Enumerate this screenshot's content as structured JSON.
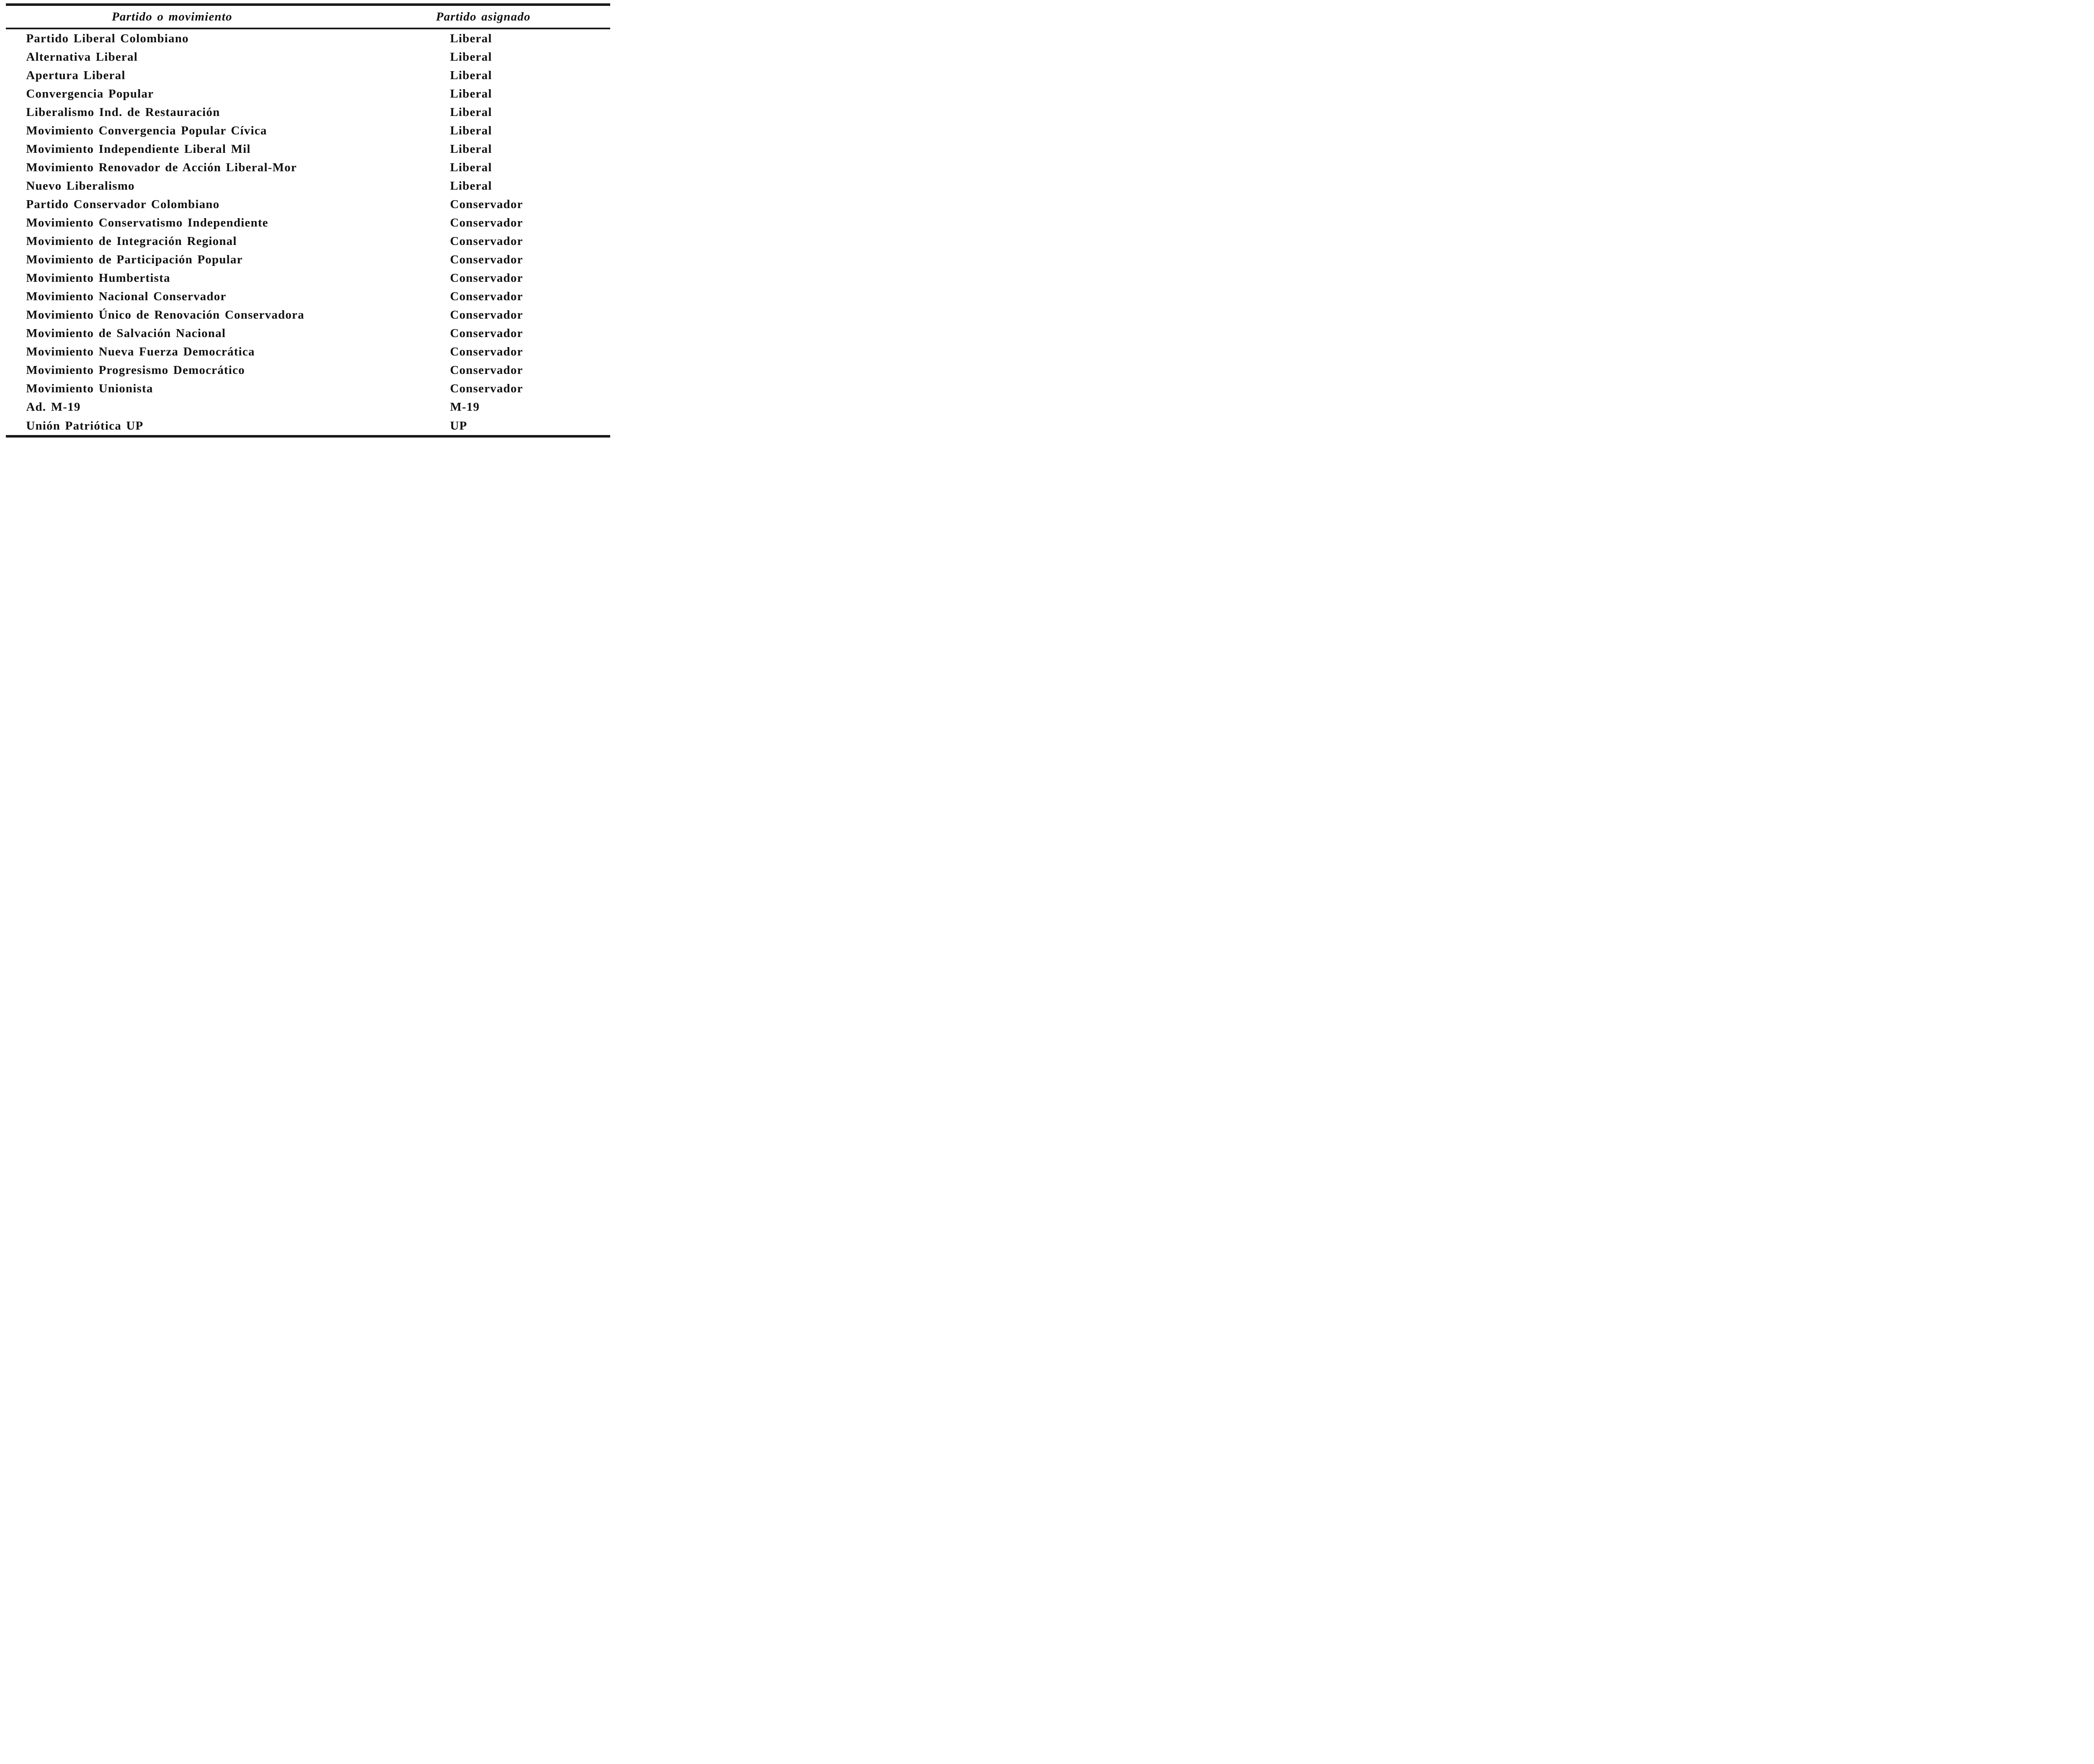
{
  "page": {
    "background_color": "#ffffff",
    "ink_color": "#101010",
    "rule_color": "#1a1a1a"
  },
  "table": {
    "columns": [
      {
        "label": "Partido o movimiento"
      },
      {
        "label": "Partido asignado"
      }
    ],
    "rows": [
      {
        "movimiento": "Partido Liberal Colombiano",
        "asignado": "Liberal"
      },
      {
        "movimiento": "Alternativa Liberal",
        "asignado": "Liberal"
      },
      {
        "movimiento": "Apertura Liberal",
        "asignado": "Liberal"
      },
      {
        "movimiento": "Convergencia Popular",
        "asignado": "Liberal"
      },
      {
        "movimiento": "Liberalismo Ind. de Restauración",
        "asignado": "Liberal"
      },
      {
        "movimiento": "Movimiento Convergencia Popular Cívica",
        "asignado": "Liberal"
      },
      {
        "movimiento": "Movimiento Independiente Liberal Mil",
        "asignado": "Liberal"
      },
      {
        "movimiento": "Movimiento Renovador de Acción Liberal-Mor",
        "asignado": "Liberal"
      },
      {
        "movimiento": "Nuevo Liberalismo",
        "asignado": "Liberal"
      },
      {
        "movimiento": "Partido Conservador Colombiano",
        "asignado": "Conservador"
      },
      {
        "movimiento": "Movimiento Conservatismo Independiente",
        "asignado": "Conservador"
      },
      {
        "movimiento": "Movimiento de Integración Regional",
        "asignado": "Conservador"
      },
      {
        "movimiento": "Movimiento de Participación Popular",
        "asignado": "Conservador"
      },
      {
        "movimiento": "Movimiento Humbertista",
        "asignado": "Conservador"
      },
      {
        "movimiento": "Movimiento Nacional Conservador",
        "asignado": "Conservador"
      },
      {
        "movimiento": "Movimiento Único de Renovación Conservadora",
        "asignado": "Conservador"
      },
      {
        "movimiento": "Movimiento de Salvación Nacional",
        "asignado": "Conservador"
      },
      {
        "movimiento": "Movimiento Nueva Fuerza Democrática",
        "asignado": "Conservador"
      },
      {
        "movimiento": "Movimiento Progresismo Democrático",
        "asignado": "Conservador"
      },
      {
        "movimiento": "Movimiento Unionista",
        "asignado": "Conservador"
      },
      {
        "movimiento": "Ad. M-19",
        "asignado": "M-19"
      },
      {
        "movimiento": "Unión Patriótica UP",
        "asignado": "UP"
      }
    ]
  }
}
